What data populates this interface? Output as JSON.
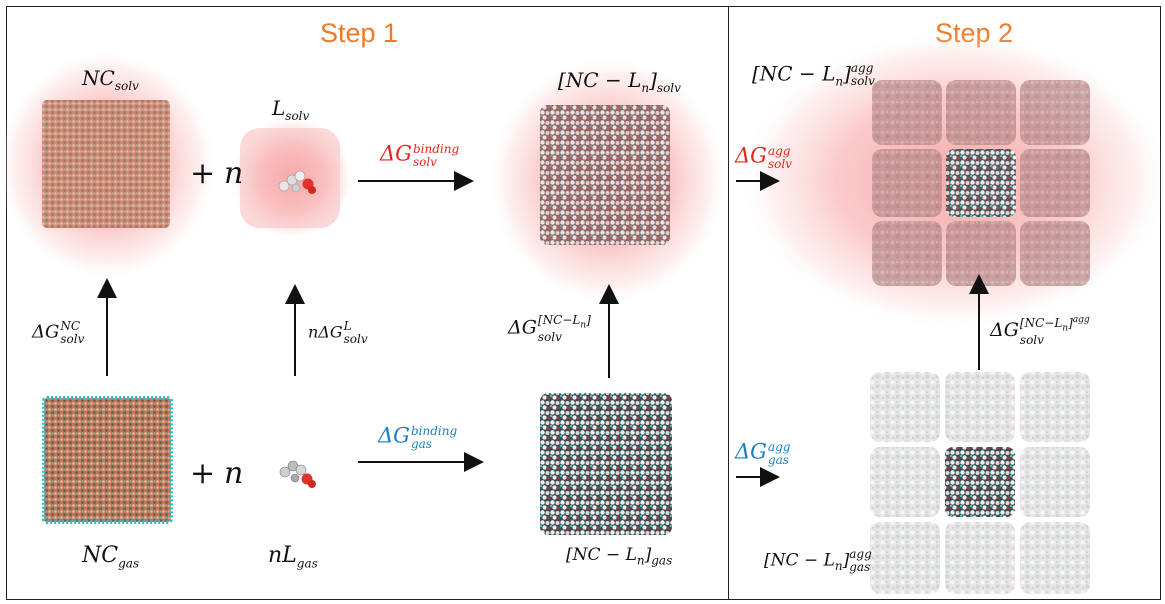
{
  "steps": {
    "step1": "Step 1",
    "step2": "Step 2"
  },
  "species": {
    "nc_solv": {
      "base": "NC",
      "sub": "solv"
    },
    "l_solv": {
      "base": "L",
      "sub": "solv"
    },
    "ncl_solv": {
      "base": "[NC − L",
      "n": "n",
      "close": "]",
      "sub": "solv"
    },
    "ncl_solv_agg": {
      "base": "[NC − L",
      "n": "n",
      "close": "]",
      "sup": "agg",
      "sub": "solv"
    },
    "nc_gas": {
      "base": "NC",
      "sub": "gas"
    },
    "nl_gas": {
      "base": "nL",
      "sub": "gas"
    },
    "ncl_gas": {
      "base": "[NC − L",
      "n": "n",
      "close": "]",
      "sub": "gas"
    },
    "ncl_gas_agg": {
      "base": "[NC − L",
      "n": "n",
      "close": "]",
      "sup": "agg",
      "sub": "gas"
    }
  },
  "operators": {
    "plus": "+",
    "n": "n"
  },
  "transitions": {
    "binding_solv": {
      "main": "ΔG",
      "sup": "binding",
      "sub": "solv",
      "color": "#e3271d"
    },
    "binding_gas": {
      "main": "ΔG",
      "sup": "binding",
      "sub": "gas",
      "color": "#1a7fc4"
    },
    "agg_solv": {
      "main": "ΔG",
      "sup": "agg",
      "sub": "solv",
      "color": "#e3271d"
    },
    "agg_gas": {
      "main": "ΔG",
      "sup": "agg",
      "sub": "gas",
      "color": "#1a7fc4"
    },
    "nc_solvation": {
      "main": "ΔG",
      "sup": "NC",
      "sub": "solv"
    },
    "l_solvation": {
      "main": "nΔG",
      "sup": "L",
      "sub": "solv"
    },
    "ncl_solvation": {
      "main": "ΔG",
      "sup": "[NC−L",
      "sup_n": "n",
      "sup_close": "]",
      "sub": "solv"
    },
    "ncl_agg_solvation": {
      "main": "ΔG",
      "sup": "[NC−L",
      "sup_n": "n",
      "sup_close": "]",
      "sup_agg": "agg",
      "sub": "solv"
    }
  },
  "colors": {
    "accent_step": "#f07a26",
    "solvent_pink": "#f7a9a9",
    "nc_copper": "#c98a6a",
    "nc_teal": "#36c2c8",
    "ligand_white": "#e9e9e9"
  }
}
